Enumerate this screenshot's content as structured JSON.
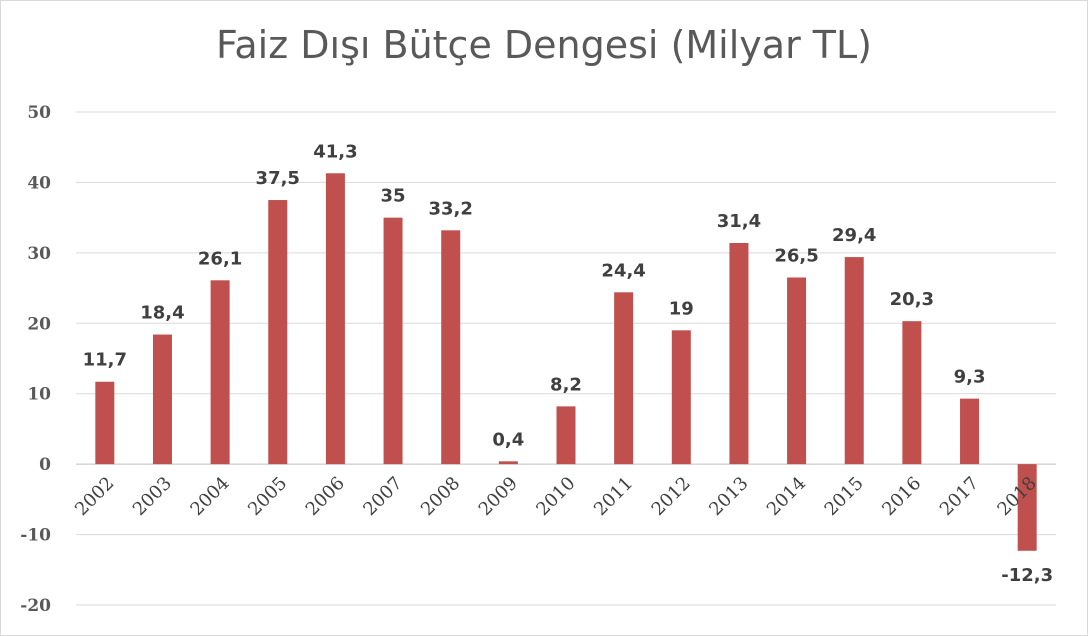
{
  "chart_data": {
    "type": "bar",
    "title": "Faiz Dışı Bütçe Dengesi (Milyar TL)",
    "xlabel": "",
    "ylabel": "",
    "categories": [
      "2002",
      "2003",
      "2004",
      "2005",
      "2006",
      "2007",
      "2008",
      "2009",
      "2010",
      "2011",
      "2012",
      "2013",
      "2014",
      "2015",
      "2016",
      "2017",
      "2018"
    ],
    "values": [
      11.7,
      18.4,
      26.1,
      37.5,
      41.3,
      35,
      33.2,
      0.4,
      8.2,
      24.4,
      19,
      31.4,
      26.5,
      29.4,
      20.3,
      9.3,
      -12.3
    ],
    "data_labels": [
      "11,7",
      "18,4",
      "26,1",
      "37,5",
      "41,3",
      "35",
      "33,2",
      "0,4",
      "8,2",
      "24,4",
      "19",
      "31,4",
      "26,5",
      "29,4",
      "20,3",
      "9,3",
      "-12,3"
    ],
    "ylim": [
      -20,
      50
    ],
    "yticks": [
      "-20",
      "-10",
      "0",
      "10",
      "20",
      "30",
      "40",
      "50"
    ],
    "grid": true,
    "legend": "none",
    "bar_color": "#c0504d",
    "grid_color": "#d9d9d9"
  }
}
